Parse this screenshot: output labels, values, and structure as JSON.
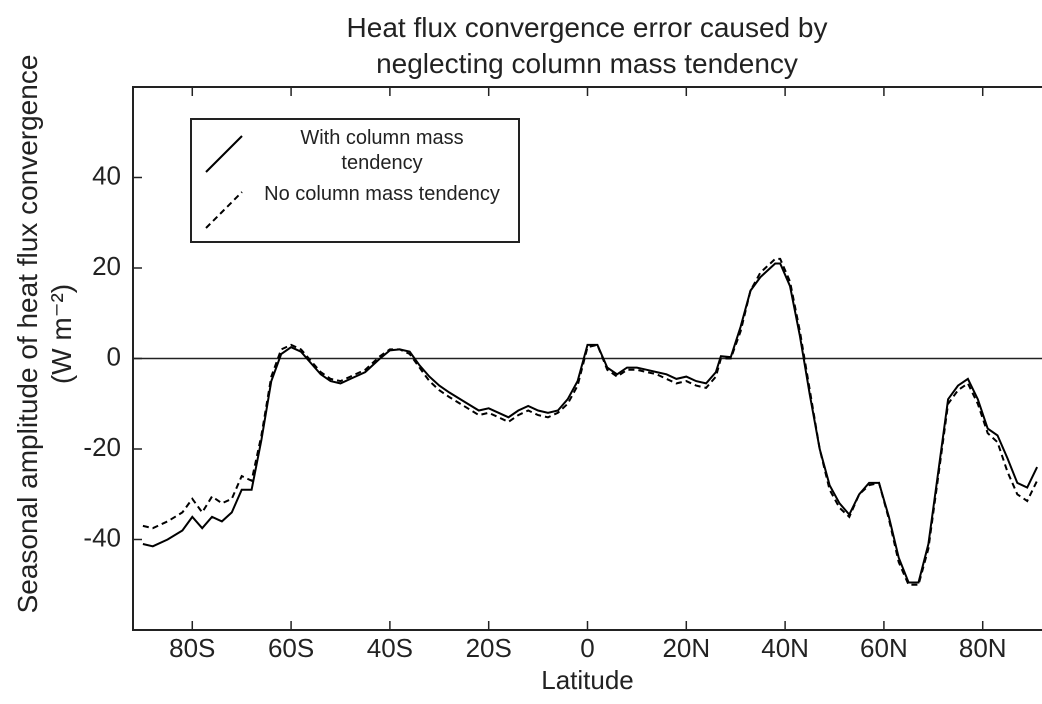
{
  "chart_data": {
    "type": "line",
    "title": "Heat flux convergence error caused by neglecting column mass tendency",
    "xlabel": "Latitude",
    "ylabel": "Seasonal amplitude of heat flux convergence (W m⁻²)",
    "x": [
      -90,
      -88,
      -85,
      -82,
      -80,
      -78,
      -76,
      -74,
      -72,
      -70,
      -68,
      -66,
      -64,
      -62,
      -60,
      -58,
      -56,
      -54,
      -52,
      -50,
      -48,
      -45,
      -42,
      -40,
      -38,
      -36,
      -34,
      -32,
      -30,
      -28,
      -25,
      -22,
      -20,
      -18,
      -16,
      -14,
      -12,
      -10,
      -8,
      -6,
      -4,
      -2,
      0,
      2,
      4,
      6,
      8,
      10,
      12,
      14,
      16,
      18,
      20,
      22,
      24,
      26,
      27,
      29,
      31,
      33,
      35,
      37,
      38,
      39,
      41,
      43,
      45,
      47,
      49,
      51,
      53,
      55,
      57,
      59,
      61,
      63,
      65,
      67,
      69,
      71,
      73,
      75,
      77,
      79,
      81,
      83,
      85,
      87,
      89,
      91
    ],
    "series": [
      {
        "name": "With column mass tendency",
        "color": "#000000",
        "dash": false,
        "values": [
          -41,
          -41.5,
          -40,
          -38,
          -35,
          -37.5,
          -35,
          -36,
          -34,
          -29,
          -29,
          -18,
          -5,
          1,
          2.5,
          1.5,
          -1,
          -3.5,
          -5,
          -5.5,
          -4.5,
          -3,
          0,
          1.8,
          2,
          1.5,
          -1.5,
          -4,
          -6,
          -7.5,
          -9.5,
          -11.5,
          -11,
          -12,
          -13,
          -11.5,
          -10.5,
          -11.5,
          -12,
          -11.5,
          -9,
          -5,
          3,
          3,
          -2,
          -3.5,
          -2,
          -2,
          -2.5,
          -3,
          -3.5,
          -4.5,
          -4,
          -5,
          -5.5,
          -3,
          0.5,
          0.3,
          7,
          15,
          18,
          20,
          21,
          21,
          16,
          5,
          -8,
          -20,
          -28,
          -32,
          -34.5,
          -30,
          -27.5,
          -27.5,
          -35,
          -44,
          -49.5,
          -49.5,
          -41,
          -25,
          -9,
          -6,
          -4.5,
          -9,
          -15.5,
          -17,
          -22,
          -27.5,
          -28.5,
          -24
        ]
      },
      {
        "name": "No column mass tendency",
        "color": "#000000",
        "dash": true,
        "values": [
          -37,
          -37.5,
          -36,
          -34,
          -31,
          -34,
          -30.5,
          -32,
          -31,
          -26,
          -27,
          -17,
          -4,
          2,
          3,
          2,
          -0.5,
          -3,
          -4.5,
          -5,
          -4,
          -2.5,
          0.5,
          2,
          2,
          1,
          -2,
          -5,
          -7,
          -8.5,
          -10.5,
          -12.5,
          -12,
          -13,
          -14,
          -12.5,
          -11.5,
          -12.5,
          -13,
          -12,
          -10,
          -6,
          2.5,
          3,
          -2.5,
          -4,
          -2.5,
          -2.5,
          -3,
          -3.5,
          -4.5,
          -5.5,
          -5,
          -6,
          -6.5,
          -4,
          0,
          0,
          6,
          15,
          19,
          21,
          22,
          22,
          17,
          6,
          -7,
          -20,
          -29,
          -33,
          -35,
          -30,
          -28,
          -27.5,
          -35.5,
          -45,
          -50,
          -50,
          -42,
          -26,
          -10,
          -7,
          -5.5,
          -10,
          -16.5,
          -18.5,
          -25,
          -30,
          -31.5,
          -27
        ]
      }
    ],
    "xlim": [
      -92,
      92
    ],
    "xticks": [
      {
        "value": -80,
        "label": "80S"
      },
      {
        "value": -60,
        "label": "60S"
      },
      {
        "value": -40,
        "label": "40S"
      },
      {
        "value": -20,
        "label": "20S"
      },
      0,
      {
        "value": 20,
        "label": "20N"
      },
      {
        "value": 40,
        "label": "40N"
      },
      {
        "value": 60,
        "label": "60N"
      },
      {
        "value": 80,
        "label": "80N"
      }
    ],
    "ylim": [
      -60,
      60
    ],
    "yticks": [
      -40,
      -20,
      0,
      20,
      40
    ],
    "zero_line": true,
    "legend": "upper left"
  }
}
